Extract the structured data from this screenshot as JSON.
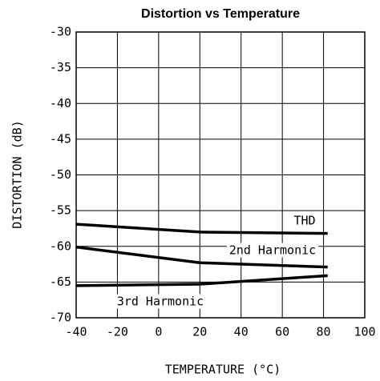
{
  "chart_data": {
    "type": "line",
    "title": "Distortion vs Temperature",
    "x_label": "TEMPERATURE (°C)",
    "y_label": "DISTORTION (dB)",
    "x": [
      -40,
      20,
      82
    ],
    "series": [
      {
        "name": "THD",
        "color": "#000000",
        "values": [
          -56.9,
          -58.0,
          -58.2
        ]
      },
      {
        "name": "2nd Harmonic",
        "color": "#000000",
        "values": [
          -60.1,
          -62.3,
          -62.9
        ]
      },
      {
        "name": "3rd Harmonic",
        "color": "#000000",
        "values": [
          -65.5,
          -65.3,
          -64.1
        ]
      }
    ],
    "xlim": [
      -40,
      100
    ],
    "xticks": [
      -40,
      -20,
      0,
      20,
      40,
      60,
      80,
      100
    ],
    "ylim": [
      -70,
      -30
    ],
    "yticks": [
      -70,
      -65,
      -60,
      -55,
      -50,
      -45,
      -40,
      -35,
      -30
    ],
    "grid": true
  }
}
